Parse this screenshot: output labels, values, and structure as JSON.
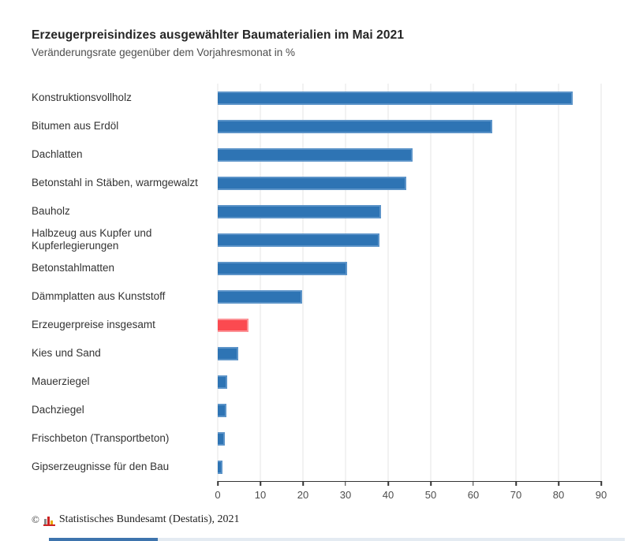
{
  "header": {
    "title": "Erzeugerpreisindizes ausgewählter Baumaterialien im Mai 2021",
    "subtitle": "Veränderungsrate gegenüber dem Vorjahresmonat in %"
  },
  "chart_data": {
    "type": "bar",
    "orientation": "horizontal",
    "title": "Erzeugerpreisindizes ausgewählter Baumaterialien im Mai 2021",
    "subtitle": "Veränderungsrate gegenüber dem Vorjahresmonat in %",
    "xlabel": "",
    "ylabel": "",
    "categories": [
      "Konstruktionsvollholz",
      "Bitumen aus Erdöl",
      "Dachlatten",
      "Betonstahl in Stäben, warmgewalzt",
      "Bauholz",
      "Halbzeug aus Kupfer und Kupferlegierungen",
      "Betonstahlmatten",
      "Dämmplatten aus Kunststoff",
      "Erzeugerpreise insgesamt",
      "Kies und Sand",
      "Mauerziegel",
      "Dachziegel",
      "Frischbeton (Transportbeton)",
      "Gipserzeugnisse für den Bau"
    ],
    "values": [
      83.3,
      64.4,
      45.7,
      44.3,
      38.4,
      37.9,
      30.4,
      19.8,
      7.2,
      4.9,
      2.2,
      2.1,
      1.6,
      1.2
    ],
    "unit": "%",
    "highlight_index": 8,
    "xlim": [
      0,
      90
    ],
    "x_ticks": [
      0,
      10,
      20,
      30,
      40,
      50,
      60,
      70,
      80,
      90
    ],
    "grid": true,
    "legend": "none",
    "colors": {
      "bar_fill": "#2e74b4",
      "bar_border": "#5b93c8",
      "highlight_fill": "#fb4a50",
      "highlight_border": "#fc9296",
      "gridline": "#e5e5e5",
      "axis": "#333333"
    }
  },
  "footer": {
    "copyright_sign": "©",
    "source": "Statistisches Bundesamt (Destatis), 2021",
    "logo_icon": "destatis-bar-chart-icon"
  }
}
